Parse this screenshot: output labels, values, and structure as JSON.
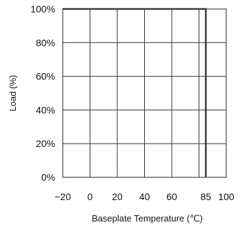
{
  "chart_data": {
    "type": "line",
    "title": "",
    "xlabel": "Baseplate Temperature (℃)",
    "ylabel": "Load (%)",
    "xlim": [
      -20,
      100
    ],
    "ylim": [
      0,
      100
    ],
    "x_ticks": [
      -20,
      0,
      20,
      40,
      60,
      85,
      100
    ],
    "x_tick_labels": [
      "−20",
      "0",
      "20",
      "40",
      "60",
      "85",
      "100"
    ],
    "y_ticks": [
      0,
      20,
      40,
      60,
      80,
      100
    ],
    "y_tick_labels": [
      "0%",
      "20%",
      "40%",
      "60%",
      "80%",
      "100%"
    ],
    "x_gridlines": [
      0,
      20,
      40,
      60,
      80,
      85
    ],
    "y_gridlines": [
      20,
      40,
      60,
      80
    ],
    "grid": true,
    "legend": "none",
    "series": [
      {
        "x": [
          -20,
          85,
          85
        ],
        "y": [
          100,
          100,
          0
        ],
        "color": "#3a3a3a"
      }
    ]
  }
}
